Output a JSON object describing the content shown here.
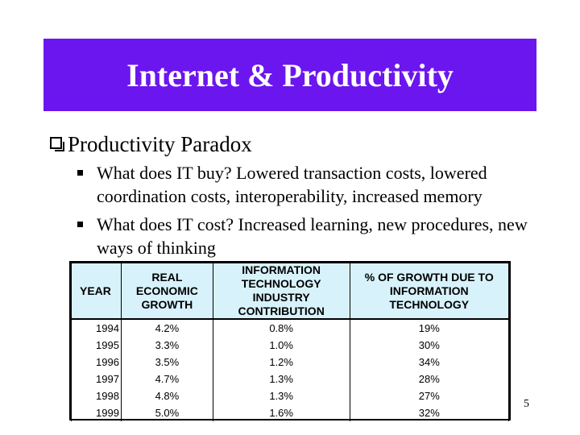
{
  "slide": {
    "title": "Internet & Productivity",
    "bullet": "Productivity Paradox",
    "sub_bullets": [
      "What does IT buy?  Lowered transaction costs, lowered coordination costs, interoperability, increased memory",
      "What does IT cost?  Increased learning, new procedures, new ways of thinking"
    ],
    "page_number": "5"
  },
  "table": {
    "headers": [
      "YEAR",
      "REAL ECONOMIC\nGROWTH",
      "INFORMATION\nTECHNOLOGY INDUSTRY\nCONTRIBUTION",
      "% OF GROWTH DUE TO\nINFORMATION TECHNOLOGY"
    ],
    "rows": [
      [
        "1994",
        "4.2%",
        "0.8%",
        "19%"
      ],
      [
        "1995",
        "3.3%",
        "1.0%",
        "30%"
      ],
      [
        "1996",
        "3.5%",
        "1.2%",
        "34%"
      ],
      [
        "1997",
        "4.7%",
        "1.3%",
        "28%"
      ],
      [
        "1998",
        "4.8%",
        "1.3%",
        "27%"
      ],
      [
        "1999",
        "5.0%",
        "1.6%",
        "32%"
      ]
    ]
  },
  "colors": {
    "title_bg": "#6b16ee",
    "title_text": "#ffffff",
    "header_bg": "#d8f2fb"
  }
}
